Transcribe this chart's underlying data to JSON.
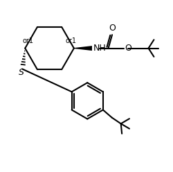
{
  "bg_color": "#ffffff",
  "line_color": "#000000",
  "line_width": 1.5,
  "font_size": 7.5,
  "figsize": [
    2.5,
    2.48
  ],
  "dpi": 100,
  "xlim": [
    0,
    10
  ],
  "ylim": [
    0,
    9.92
  ]
}
